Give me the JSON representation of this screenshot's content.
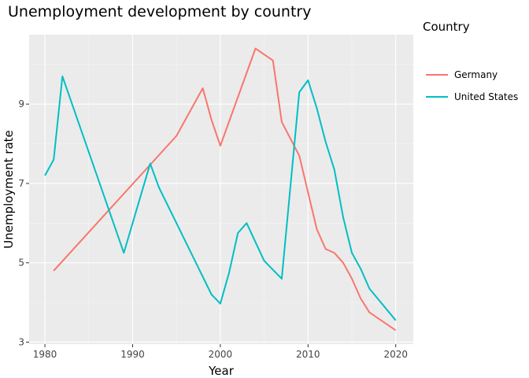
{
  "chart_data": {
    "type": "line",
    "title": "Unemployment development by country",
    "xlabel": "Year",
    "ylabel": "Unemployment rate",
    "xlim": [
      1978.2,
      2022.0
    ],
    "ylim": [
      2.95,
      10.75
    ],
    "xticks": [
      1980,
      1990,
      2000,
      2010,
      2020
    ],
    "yticks": [
      3,
      5,
      7,
      9
    ],
    "grid": true,
    "legend_title": "Country",
    "legend_position": "right",
    "series": [
      {
        "name": "Germany",
        "color": "#F8766D",
        "x": [
          1981,
          1995,
          1998,
          1999,
          2000,
          2004,
          2006,
          2007,
          2009,
          2011,
          2012,
          2013,
          2014,
          2015,
          2016,
          2017,
          2020
        ],
        "y": [
          4.8,
          8.2,
          9.4,
          8.6,
          7.95,
          10.4,
          10.1,
          8.55,
          7.7,
          5.85,
          5.35,
          5.25,
          5.0,
          4.6,
          4.1,
          3.75,
          3.3
        ]
      },
      {
        "name": "United States",
        "color": "#00BFC4",
        "x": [
          1980,
          1981,
          1982,
          1989,
          1992,
          1993,
          1999,
          2000,
          2001,
          2002,
          2003,
          2005,
          2007,
          2009,
          2010,
          2011,
          2012,
          2013,
          2014,
          2015,
          2016,
          2017,
          2020
        ],
        "y": [
          7.2,
          7.6,
          9.7,
          5.25,
          7.5,
          6.9,
          4.2,
          3.97,
          4.75,
          5.75,
          6.0,
          5.05,
          4.6,
          9.3,
          9.6,
          8.9,
          8.05,
          7.35,
          6.15,
          5.25,
          4.85,
          4.35,
          3.55
        ]
      }
    ]
  }
}
